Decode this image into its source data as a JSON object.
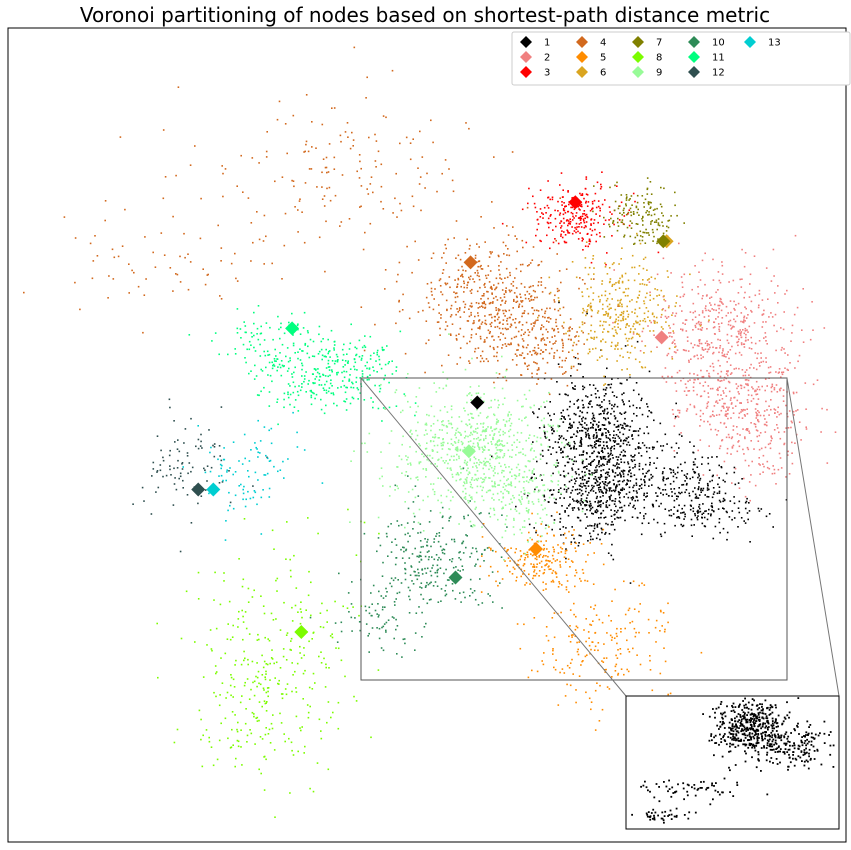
{
  "chart_data": {
    "type": "scatter",
    "title": "Voronoi partitioning of nodes based on shortest-path distance metric",
    "xlabel": "",
    "ylabel": "",
    "axes_ticks": "none",
    "grid": false,
    "legend_position": "top-right",
    "legend_columns": 6,
    "marker": "diamond",
    "regions": [
      {
        "name": "1",
        "color": "#000000",
        "seed": [
          0.56,
          0.54
        ]
      },
      {
        "name": "2",
        "color": "#f08080",
        "seed": [
          0.78,
          0.62
        ]
      },
      {
        "name": "3",
        "color": "#ff0000",
        "seed": [
          0.677,
          0.786
        ]
      },
      {
        "name": "4",
        "color": "#d2691e",
        "seed": [
          0.552,
          0.712
        ]
      },
      {
        "name": "5",
        "color": "#ff8c00",
        "seed": [
          0.63,
          0.36
        ]
      },
      {
        "name": "6",
        "color": "#daa520",
        "seed": [
          0.786,
          0.738
        ]
      },
      {
        "name": "7",
        "color": "#808000",
        "seed": [
          0.782,
          0.738
        ]
      },
      {
        "name": "8",
        "color": "#7cfc00",
        "seed": [
          0.35,
          0.258
        ]
      },
      {
        "name": "9",
        "color": "#98fb98",
        "seed": [
          0.55,
          0.48
        ]
      },
      {
        "name": "10",
        "color": "#2e8b57",
        "seed": [
          0.534,
          0.325
        ]
      },
      {
        "name": "11",
        "color": "#00ff7f",
        "seed": [
          0.339,
          0.631
        ]
      },
      {
        "name": "12",
        "color": "#2f4f4f",
        "seed": [
          0.227,
          0.433
        ]
      },
      {
        "name": "13",
        "color": "#00ced1",
        "seed": [
          0.245,
          0.433
        ]
      }
    ],
    "inset": {
      "region": "1",
      "zoom_box": "center",
      "placement": "bottom-right"
    }
  }
}
